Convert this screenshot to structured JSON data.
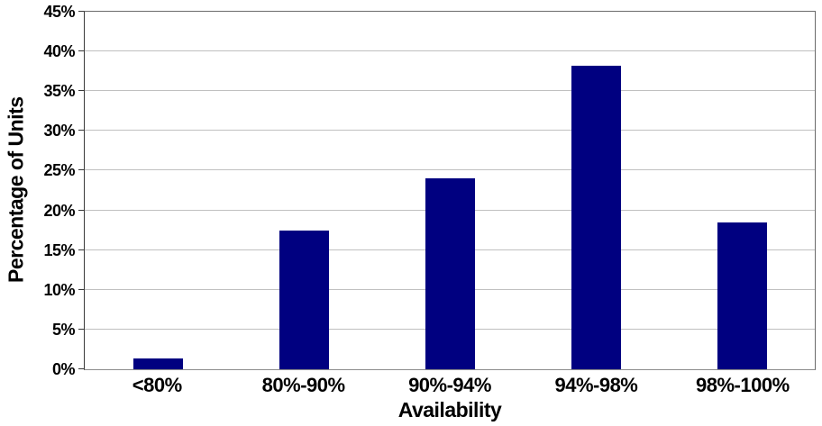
{
  "chart_data": {
    "type": "bar",
    "title": "",
    "categories": [
      "<80%",
      "80%-90%",
      "90%-94%",
      "94%-98%",
      "98%-100%"
    ],
    "values": [
      1.4,
      17.5,
      24.0,
      38.2,
      18.5
    ],
    "xlabel": "Availability",
    "ylabel": "Percentage of Units",
    "ylim": [
      0,
      45
    ],
    "ytick_step": 5,
    "ytick_labels": [
      "0%",
      "5%",
      "10%",
      "15%",
      "20%",
      "25%",
      "30%",
      "35%",
      "40%",
      "45%"
    ],
    "grid": "horizontal",
    "legend": "none",
    "bar_color": "#000080",
    "gridline_color": "#c0c0c0",
    "axis_color": "#3a3a3a",
    "text_color": "#000000",
    "background_color": "#ffffff"
  }
}
